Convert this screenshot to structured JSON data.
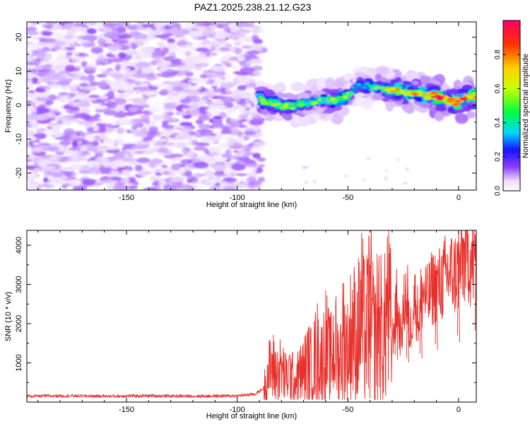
{
  "title": "PAZ1.2025.238.21.12.G23",
  "chart_data": [
    {
      "type": "heatmap",
      "xlabel": "Height of straight line (km)",
      "ylabel": "Frequency (Hz)",
      "xlim": [
        -195,
        8
      ],
      "ylim": [
        -25,
        24.5
      ],
      "xticks": [
        -150,
        -100,
        -50,
        0
      ],
      "yticks": [
        -20,
        -10,
        0,
        10,
        20
      ],
      "colorbar": {
        "label": "Normalized spectral amplitude",
        "range": [
          0,
          1
        ],
        "ticks": [
          0.0,
          0.2,
          0.4,
          0.6,
          0.8
        ],
        "tick_labels": [
          "0.0",
          "0.2",
          "0.4",
          "0.6",
          "0.8"
        ]
      },
      "noise_region": {
        "x_from": -195,
        "x_to": -89,
        "amplitude_range": [
          0.02,
          0.13
        ]
      },
      "signal_ridge": [
        {
          "x": -90,
          "f": 2.5,
          "amp": 0.45
        },
        {
          "x": -88,
          "f": 1.0,
          "amp": 0.55
        },
        {
          "x": -80,
          "f": 0.0,
          "amp": 0.6
        },
        {
          "x": -75,
          "f": -0.5,
          "amp": 0.5
        },
        {
          "x": -70,
          "f": 0.5,
          "amp": 0.5
        },
        {
          "x": -60,
          "f": 1.5,
          "amp": 0.55
        },
        {
          "x": -55,
          "f": 1.5,
          "amp": 0.6
        },
        {
          "x": -50,
          "f": 2.5,
          "amp": 0.55
        },
        {
          "x": -45,
          "f": 6.0,
          "amp": 0.35
        },
        {
          "x": -40,
          "f": 5.5,
          "amp": 0.45
        },
        {
          "x": -35,
          "f": 5.0,
          "amp": 0.5
        },
        {
          "x": -30,
          "f": 4.5,
          "amp": 0.7
        },
        {
          "x": -25,
          "f": 4.0,
          "amp": 0.75
        },
        {
          "x": -20,
          "f": 3.5,
          "amp": 0.7
        },
        {
          "x": -15,
          "f": 3.0,
          "amp": 0.75
        },
        {
          "x": -10,
          "f": 2.5,
          "amp": 0.95
        },
        {
          "x": -5,
          "f": 1.5,
          "amp": 0.85
        },
        {
          "x": 0,
          "f": 1.0,
          "amp": 0.95
        },
        {
          "x": 5,
          "f": 2.5,
          "amp": 0.9
        },
        {
          "x": 8,
          "f": 3.0,
          "amp": 0.85
        }
      ]
    },
    {
      "type": "line",
      "xlabel": "Height of straight line (km)",
      "ylabel": "SNR (10 * v/v)",
      "xlim": [
        -195,
        8
      ],
      "ylim": [
        0,
        4380
      ],
      "xticks": [
        -150,
        -100,
        -50,
        0
      ],
      "yticks": [
        1000,
        2000,
        3000,
        4000
      ],
      "series": [
        {
          "name": "SNR",
          "color": "#e8302b",
          "x": [
            -195,
            -180,
            -160,
            -140,
            -120,
            -100,
            -92,
            -88,
            -86,
            -84,
            -82,
            -80,
            -78,
            -76,
            -74,
            -72,
            -70,
            -68,
            -66,
            -64,
            -62,
            -60,
            -58,
            -56,
            -54,
            -52,
            -50,
            -48,
            -46,
            -44,
            -42,
            -40,
            -38,
            -36,
            -34,
            -32,
            -30,
            -28,
            -26,
            -24,
            -22,
            -20,
            -18,
            -16,
            -14,
            -12,
            -10,
            -8,
            -6,
            -4,
            -2,
            0,
            2,
            4,
            6,
            8
          ],
          "values": [
            150,
            160,
            150,
            160,
            150,
            160,
            200,
            350,
            750,
            900,
            700,
            850,
            600,
            750,
            500,
            700,
            800,
            1000,
            900,
            1300,
            1000,
            1450,
            1050,
            1500,
            1000,
            1700,
            1250,
            1950,
            1500,
            2300,
            1600,
            2500,
            1500,
            2200,
            1450,
            2600,
            1550,
            2400,
            1650,
            2800,
            1700,
            2700,
            2100,
            2850,
            2600,
            2900,
            2950,
            3000,
            3200,
            3300,
            3250,
            3400,
            3600,
            3900,
            3500,
            3650
          ]
        }
      ],
      "spikes": [
        {
          "x": -40,
          "value": 3500
        },
        {
          "x": -28,
          "value": 3400
        },
        {
          "x": -23,
          "value": 3500
        },
        {
          "x": -17,
          "value": 3400
        },
        {
          "x": -10,
          "value": 3300
        },
        {
          "x": 0,
          "value": 4350
        },
        {
          "x": 8,
          "value": 4300
        }
      ]
    }
  ]
}
